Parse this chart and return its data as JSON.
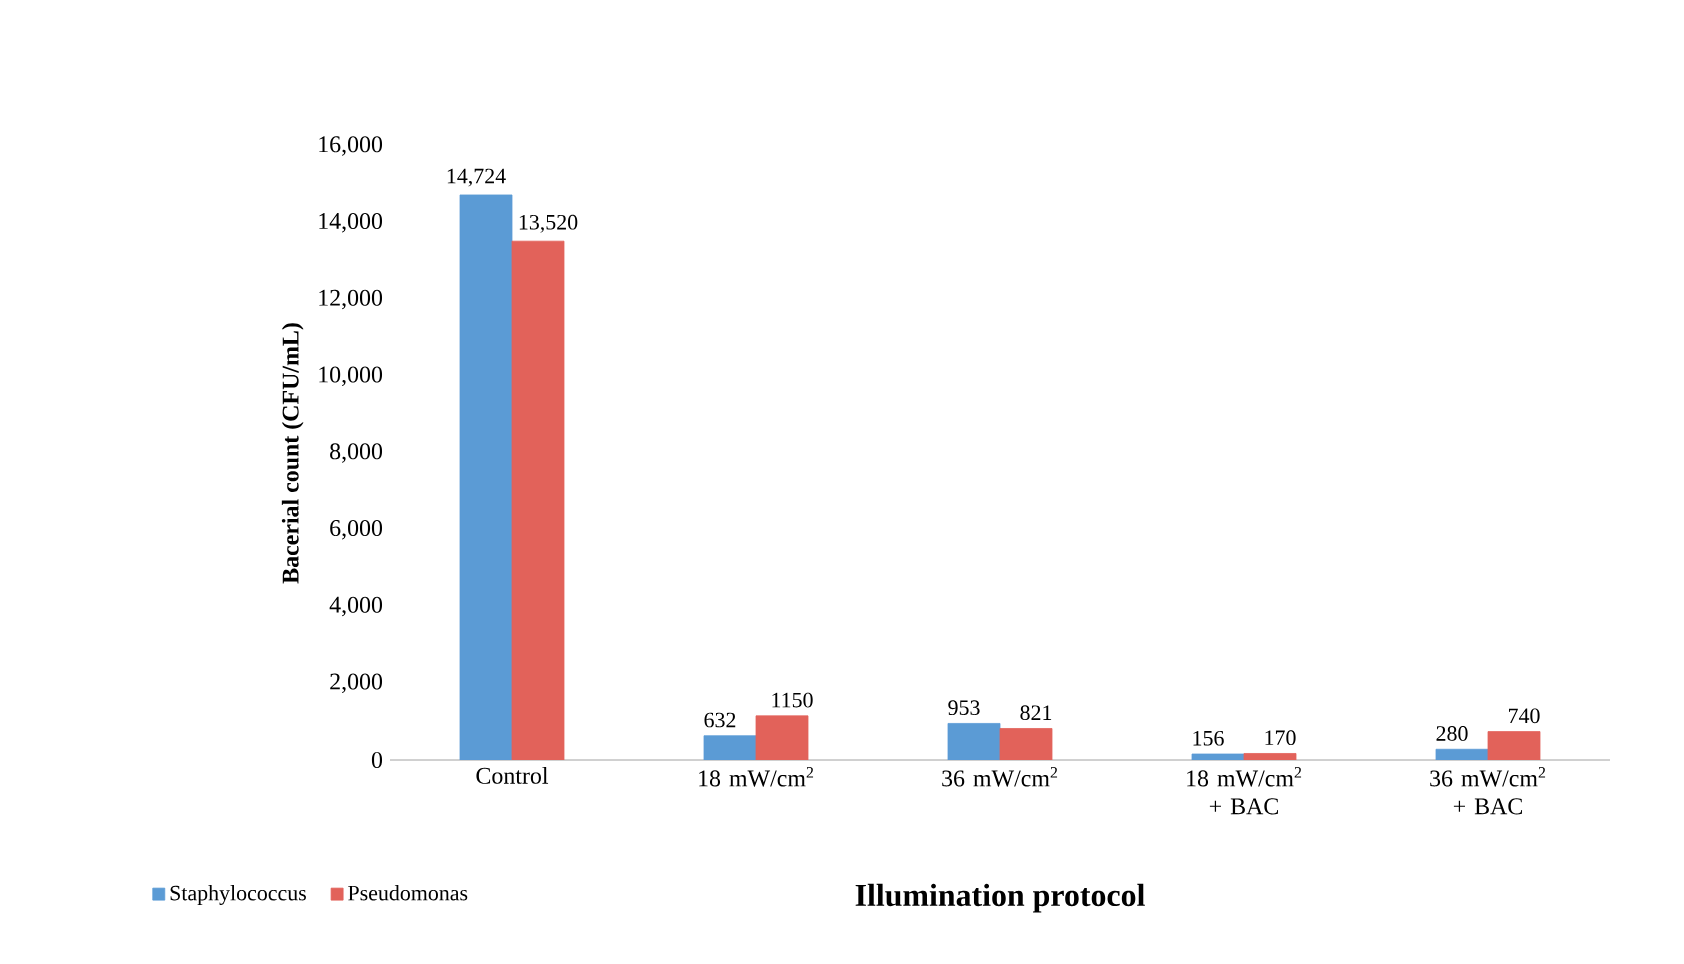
{
  "chart_data": {
    "type": "bar",
    "xlabel": "Illumination protocol",
    "ylabel": "Bacerial count (CFU/mL)",
    "categories": [
      "Control",
      "18 mW/cm$^{2}$",
      "36 mW/cm$^{2}$",
      "18 mW/cm$^{2}$ + BAC",
      "36 mW/cm$^{2}$ + BAC"
    ],
    "series": [
      {
        "name": "Staphylococcus",
        "color": "#5b9bd5",
        "values": [
          14724,
          632,
          953,
          156,
          280
        ],
        "value_labels": [
          "14,724",
          "632",
          "953",
          "156",
          "280"
        ]
      },
      {
        "name": "Pseudomonas",
        "color": "#e2625a",
        "values": [
          13520,
          1150,
          821,
          170,
          740
        ],
        "value_labels": [
          "13,520",
          "1150",
          "821",
          "170",
          "740"
        ]
      }
    ],
    "ylim": [
      0,
      16000
    ],
    "yticks": [
      {
        "value": 0,
        "label": "0"
      },
      {
        "value": 2000,
        "label": "2,000"
      },
      {
        "value": 4000,
        "label": "4,000"
      },
      {
        "value": 6000,
        "label": "6,000"
      },
      {
        "value": 8000,
        "label": "8,000"
      },
      {
        "value": 10000,
        "label": "10,000"
      },
      {
        "value": 12000,
        "label": "12,000"
      },
      {
        "value": 14000,
        "label": "14,000"
      },
      {
        "value": 16000,
        "label": "16,000"
      }
    ],
    "grid": false,
    "legend": "bottom left"
  }
}
